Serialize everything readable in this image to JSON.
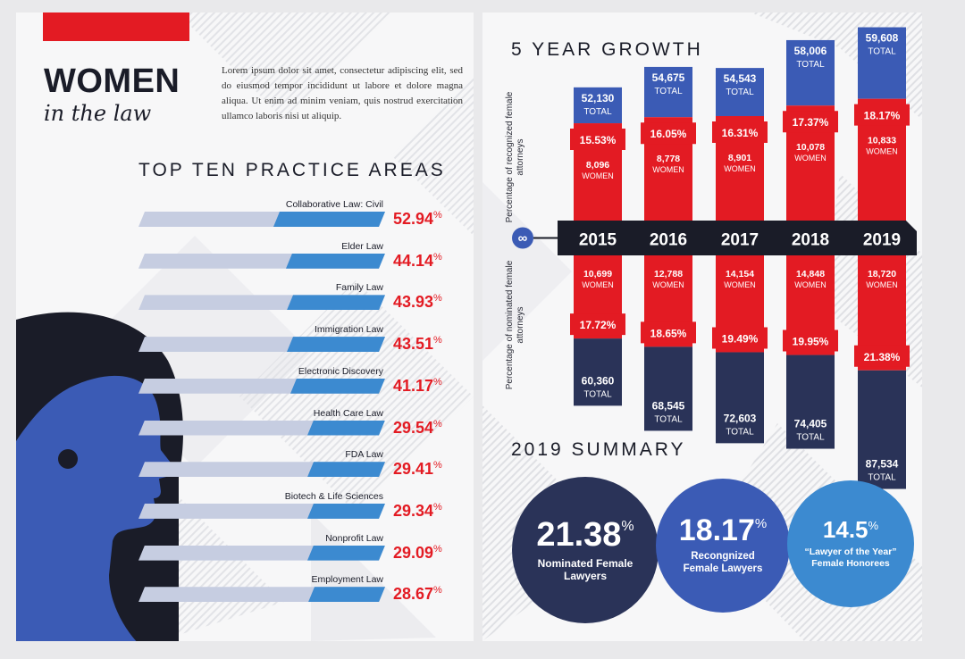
{
  "left": {
    "title": "WOMEN",
    "subtitle": "in the law",
    "intro": "Lorem ipsum dolor sit amet, consectetur adipiscing elit, sed do eiusmod tempor incididunt ut labore et dolore magna aliqua. Ut enim ad minim veniam, quis nostrud exercitation ullamco laboris nisi ut aliquip.",
    "section_title": "TOP TEN PRACTICE AREAS",
    "percent_sign": "%"
  },
  "right": {
    "growth_title": "5 YEAR GROWTH",
    "summary_title": "2019 SUMMARY",
    "upper_side_label": "Percentage of recognized female attorneys",
    "lower_side_label": "Percentage of nominated female attorneys",
    "total_label": "TOTAL",
    "women_label": "WOMEN",
    "summary": [
      {
        "value": "21.38",
        "sup": "%",
        "caption": "Nominated Female Lawyers"
      },
      {
        "value": "18.17",
        "sup": "%",
        "caption": "Recongnized Female Lawyers"
      },
      {
        "value": "14.5",
        "sup": "%",
        "caption": "“Lawyer of the Year” Female Honorees"
      }
    ]
  },
  "colors": {
    "red": "#e31b23",
    "navy": "#1a1c28",
    "royal_blue": "#3b5bb5",
    "dark_navy": "#2a3358",
    "bar_blue": "#3c8ad0",
    "bar_light": "#c6cde1"
  },
  "chart_data": [
    {
      "type": "bar",
      "title": "TOP TEN PRACTICE AREAS",
      "categories": [
        "Collaborative Law: Civil",
        "Elder Law",
        "Family Law",
        "Immigration Law",
        "Electronic Discovery",
        "Health Care Law",
        "FDA Law",
        "Biotech & Life Sciences",
        "Nonprofit Law",
        "Employment Law"
      ],
      "values": [
        52.94,
        44.14,
        43.93,
        43.51,
        41.17,
        29.54,
        29.41,
        29.34,
        29.09,
        28.67
      ],
      "value_labels": [
        "52.94",
        "44.14",
        "43.93",
        "43.51",
        "41.17",
        "29.54",
        "29.41",
        "29.34",
        "29.09",
        "28.67"
      ],
      "unit": "%"
    },
    {
      "type": "bar",
      "title": "5 YEAR GROWTH",
      "categories": [
        "2015",
        "2016",
        "2017",
        "2018",
        "2019"
      ],
      "recognized": {
        "total": [
          52130,
          54675,
          54543,
          58006,
          59608
        ],
        "total_labels": [
          "52,130",
          "54,675",
          "54,543",
          "58,006",
          "59,608"
        ],
        "women": [
          8096,
          8778,
          8901,
          10078,
          10833
        ],
        "women_labels": [
          "8,096",
          "8,778",
          "8,901",
          "10,078",
          "10,833"
        ],
        "percent": [
          15.53,
          16.05,
          16.31,
          17.37,
          18.17
        ],
        "percent_labels": [
          "15.53%",
          "16.05%",
          "16.31%",
          "17.37%",
          "18.17%"
        ]
      },
      "nominated": {
        "total": [
          60360,
          68545,
          72603,
          74405,
          87534
        ],
        "total_labels": [
          "60,360",
          "68,545",
          "72,603",
          "74,405",
          "87,534"
        ],
        "women": [
          10699,
          12788,
          14154,
          14848,
          18720
        ],
        "women_labels": [
          "10,699",
          "12,788",
          "14,154",
          "14,848",
          "18,720"
        ],
        "percent": [
          17.72,
          18.65,
          19.49,
          19.95,
          21.38
        ],
        "percent_labels": [
          "17.72%",
          "18.65%",
          "19.49%",
          "19.95%",
          "21.38%"
        ]
      }
    }
  ]
}
